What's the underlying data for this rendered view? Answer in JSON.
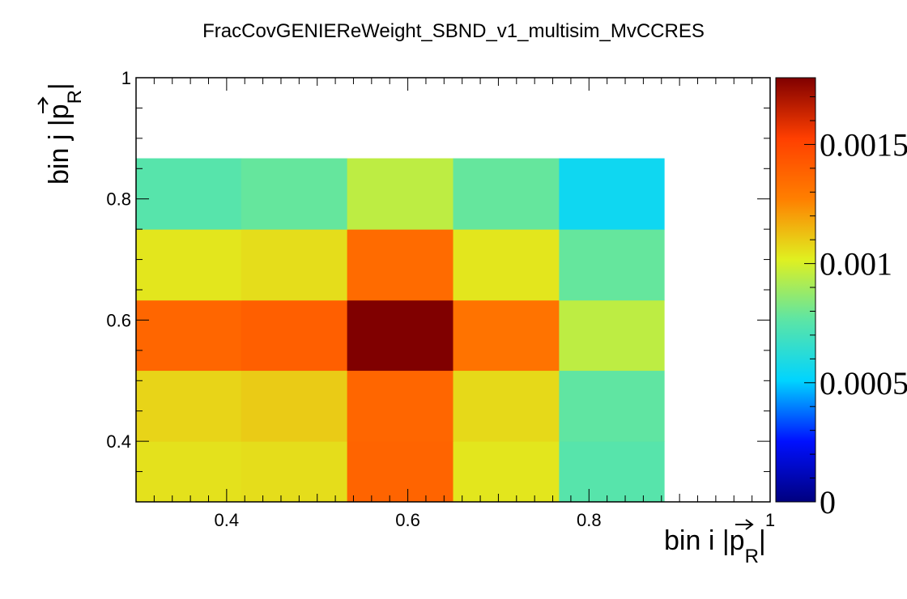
{
  "chart_data": {
    "type": "heatmap",
    "title": "FracCovGENIEReWeight_SBND_v1_multisim_MvCCRES",
    "xlabel": {
      "prefix": "bin i |",
      "symbol": "p",
      "subscript": "R",
      "suffix": "|"
    },
    "ylabel": {
      "prefix": "bin j |",
      "symbol": "p",
      "subscript": "R",
      "suffix": "|"
    },
    "xlim": [
      0.3,
      1.0
    ],
    "ylim": [
      0.3,
      1.0
    ],
    "x_ticks": [
      "0.4",
      "0.6",
      "0.8",
      "1"
    ],
    "y_ticks": [
      "0.4",
      "0.6",
      "0.8",
      "1"
    ],
    "x_edges": [
      0.3,
      0.416,
      0.533,
      0.65,
      0.767,
      0.883
    ],
    "y_edges": [
      0.3,
      0.4,
      0.517,
      0.633,
      0.75,
      0.867
    ],
    "z": [
      [
        0.00105,
        0.00106,
        0.00138,
        0.00104,
        0.00075
      ],
      [
        0.00108,
        0.0011,
        0.00137,
        0.00107,
        0.00077
      ],
      [
        0.00137,
        0.0014,
        0.00178,
        0.00132,
        0.00095
      ],
      [
        0.00104,
        0.00106,
        0.00135,
        0.00104,
        0.00078
      ],
      [
        0.00075,
        0.00078,
        0.00095,
        0.00078,
        0.00055
      ]
    ],
    "zlim": [
      0,
      0.00178
    ],
    "colorbar_ticks": [
      "0",
      "0.0005",
      "0.001",
      "0.0015"
    ],
    "colorbar_tick_values": [
      0,
      0.0005,
      0.001,
      0.0015
    ],
    "grid": false,
    "colormap": [
      "#00007f",
      "#0010ff",
      "#00d4ff",
      "#5ce5a6",
      "#e0f020",
      "#ff7f00",
      "#ff3f00",
      "#800000"
    ]
  }
}
